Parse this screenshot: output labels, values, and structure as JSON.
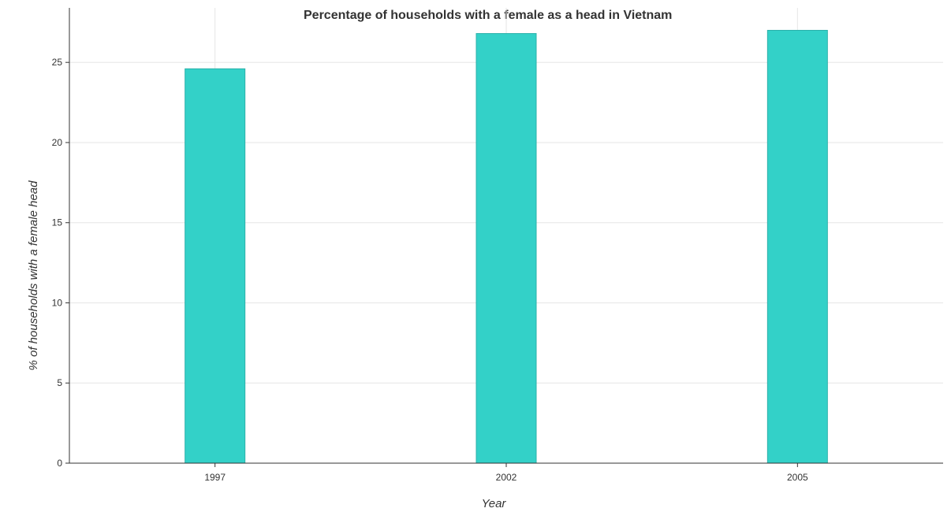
{
  "chart_data": {
    "type": "bar",
    "title": "Percentage of households with a female as a head in Vietnam",
    "xlabel": "Year",
    "ylabel": "% of households with a female head",
    "categories": [
      "1997",
      "2002",
      "2005"
    ],
    "values": [
      24.6,
      26.8,
      27.0
    ],
    "ylim": [
      0,
      28.4
    ],
    "yticks": [
      0,
      5,
      10,
      15,
      20,
      25
    ],
    "grid": true,
    "bar_color": "#33d1c8"
  }
}
